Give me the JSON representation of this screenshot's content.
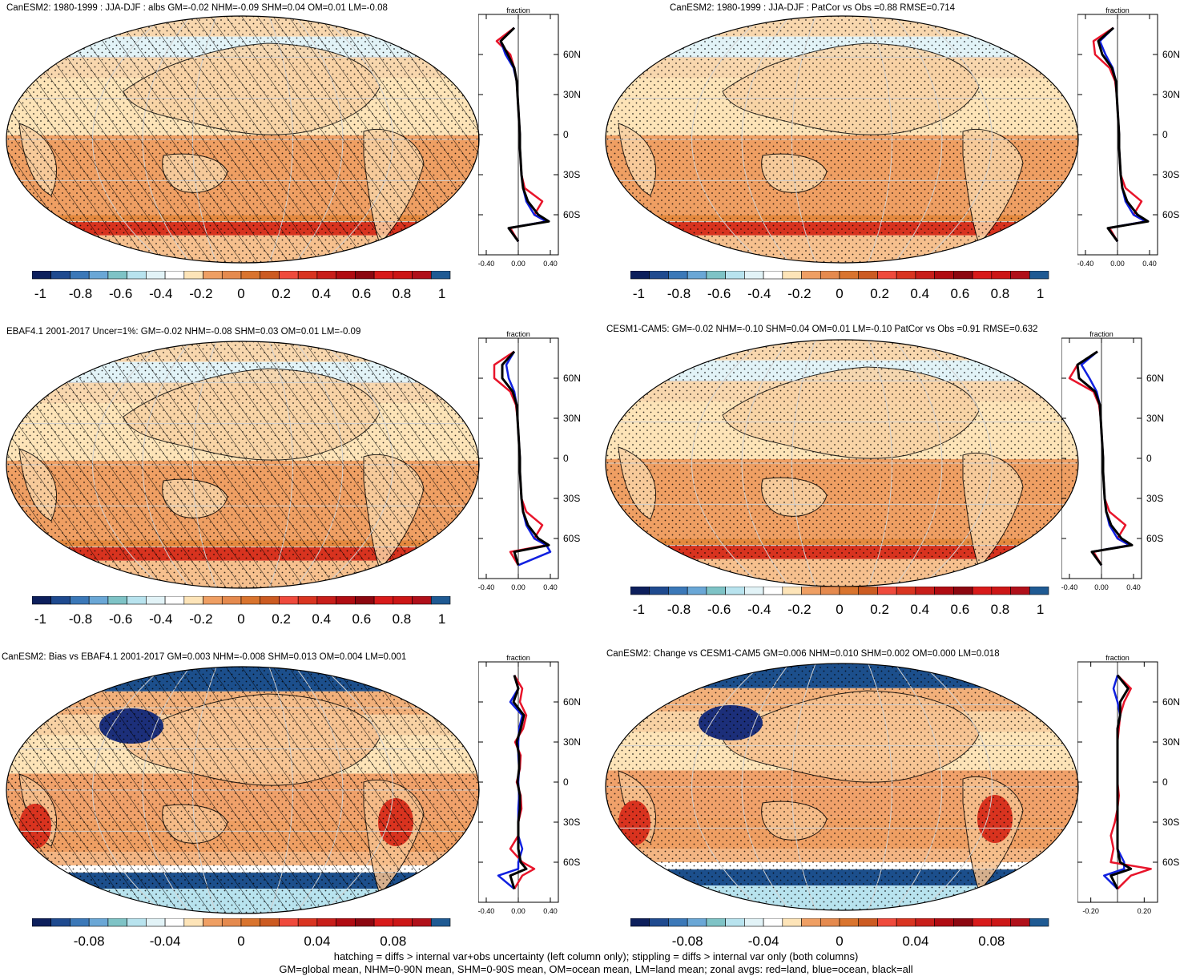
{
  "colors": {
    "palette": [
      "#0d1f5c",
      "#1f4a8f",
      "#3b78b8",
      "#6aa7d6",
      "#7ec3c6",
      "#b8e3ee",
      "#e2f3f7",
      "#ffffff",
      "#fde4b8",
      "#ef9f63",
      "#e58a4e",
      "#d9742e",
      "#cc5b22",
      "#ef4a3c",
      "#d93420",
      "#c81e1a",
      "#b00c12",
      "#8c0710",
      "#d81a1a",
      "#cc1616",
      "#b0101a",
      "#1f5a93"
    ],
    "land": "#e8142a",
    "ocean": "#1020e0",
    "all": "#000000"
  },
  "panels": [
    {
      "id": "p1",
      "title": "CanESM2: 1980-1999 : JJA-DJF : albs GM=-0.02 NHM=-0.09 SHM=0.04 OM=0.01 LM=-0.08",
      "hatched": true,
      "lat_labels": [
        "60N",
        "30N",
        "0",
        "30S",
        "60S"
      ],
      "zonal_axis_label": "fraction",
      "zonal_ticks": [
        "-0.40",
        "0.00",
        "0.40"
      ],
      "cbar_labels": [
        "-1",
        "-0.8",
        "-0.6",
        "-0.4",
        "-0.2",
        "0",
        "0.2",
        "0.4",
        "0.6",
        "0.8",
        "1"
      ]
    },
    {
      "id": "p2",
      "title": "CanESM2: 1980-1999 : JJA-DJF : PatCor vs Obs =0.88 RMSE=0.714",
      "hatched": false,
      "lat_labels": [
        "60N",
        "30N",
        "0",
        "30S",
        "60S"
      ],
      "zonal_axis_label": "fraction",
      "zonal_ticks": [
        "-0.40",
        "0.00",
        "0.40"
      ],
      "cbar_labels": [
        "-1",
        "-0.8",
        "-0.6",
        "-0.4",
        "-0.2",
        "0",
        "0.2",
        "0.4",
        "0.6",
        "0.8",
        "1"
      ]
    },
    {
      "id": "p3",
      "title": "EBAF4.1 2001-2017 Uncer=1%: GM=-0.02 NHM=-0.08 SHM=0.03 OM=0.01 LM=-0.09",
      "hatched": true,
      "lat_labels": [
        "60N",
        "30N",
        "0",
        "30S",
        "60S"
      ],
      "zonal_axis_label": "fraction",
      "zonal_ticks": [
        "-0.40",
        "0.00",
        "0.40"
      ],
      "cbar_labels": [
        "-1",
        "-0.8",
        "-0.6",
        "-0.4",
        "-0.2",
        "0",
        "0.2",
        "0.4",
        "0.6",
        "0.8",
        "1"
      ]
    },
    {
      "id": "p4",
      "title": "CESM1-CAM5: GM=-0.02 NHM=-0.10 SHM=0.04 OM=0.01 LM=-0.10 PatCor vs Obs =0.91 RMSE=0.632",
      "hatched": false,
      "lat_labels": [
        "60N",
        "30N",
        "0",
        "30S",
        "60S"
      ],
      "zonal_axis_label": "fraction",
      "zonal_ticks": [
        "-0.40",
        "0.00",
        "0.40"
      ],
      "cbar_labels": [
        "-1",
        "-0.8",
        "-0.6",
        "-0.4",
        "-0.2",
        "0",
        "0.2",
        "0.4",
        "0.6",
        "0.8",
        "1"
      ]
    },
    {
      "id": "p5",
      "title": "CanESM2: Bias vs EBAF4.1 2001-2017 GM=0.003 NHM=-0.008 SHM=0.013 OM=0.004 LM=0.001",
      "hatched": true,
      "lat_labels": [
        "60N",
        "30N",
        "0",
        "30S",
        "60S"
      ],
      "zonal_axis_label": "fraction",
      "zonal_ticks": [
        "-0.40",
        "0.00",
        "0.40"
      ],
      "cbar_labels": [
        "-0.08",
        "-0.04",
        "0",
        "0.04",
        "0.08"
      ]
    },
    {
      "id": "p6",
      "title": "CanESM2: Change vs CESM1-CAM5 GM=0.006 NHM=0.010 SHM=0.002 OM=0.000 LM=0.018",
      "hatched": false,
      "lat_labels": [
        "60N",
        "30N",
        "0",
        "30S",
        "60S"
      ],
      "zonal_axis_label": "fraction",
      "zonal_ticks": [
        "-0.20",
        "0.20"
      ],
      "cbar_labels": [
        "-0.08",
        "-0.04",
        "0",
        "0.04",
        "0.08"
      ]
    }
  ],
  "footer": {
    "line1": "hatching = diffs > internal var+obs uncertainty (left column only); stippling = diffs > internal var only (both columns)",
    "line2": "GM=global mean, NHM=0-90N mean, SHM=0-90S mean, OM=ocean mean, LM=land mean; zonal avgs: red=land, blue=ocean, black=all"
  },
  "chart_data": [
    {
      "type": "line",
      "title": "CanESM2: 1980-1999 : JJA-DJF : albs GM=-0.02 NHM=-0.09 SHM=0.04 OM=0.01 LM=-0.08",
      "xlabel": "fraction",
      "xlim": [
        -0.5,
        0.5
      ],
      "ylim": [
        -90,
        90
      ],
      "lat": [
        80,
        70,
        60,
        50,
        40,
        30,
        20,
        10,
        0,
        -10,
        -20,
        -30,
        -40,
        -50,
        -60,
        -65,
        -70,
        -80
      ],
      "series": [
        {
          "name": "land",
          "color": "#e8142a",
          "values": [
            -0.05,
            -0.27,
            -0.1,
            -0.05,
            -0.02,
            -0.01,
            0,
            0.01,
            0.02,
            0.02,
            0.03,
            0.04,
            0.08,
            0.3,
            0.2,
            0.35,
            -0.1,
            0
          ]
        },
        {
          "name": "ocean",
          "color": "#1020e0",
          "values": [
            -0.05,
            -0.22,
            -0.16,
            -0.06,
            -0.02,
            -0.01,
            0,
            0.01,
            0.02,
            0.02,
            0.03,
            0.04,
            0.06,
            0.1,
            0.2,
            0.35,
            -0.12,
            0
          ]
        },
        {
          "name": "all",
          "color": "#000000",
          "values": [
            -0.05,
            -0.22,
            -0.13,
            -0.05,
            -0.02,
            -0.01,
            0,
            0.01,
            0.02,
            0.02,
            0.03,
            0.04,
            0.06,
            0.12,
            0.25,
            0.38,
            -0.12,
            0
          ]
        }
      ]
    },
    {
      "type": "line",
      "title": "CanESM2: 1980-1999 : JJA-DJF : PatCor vs Obs =0.88 RMSE=0.714",
      "xlabel": "fraction",
      "xlim": [
        -0.5,
        0.5
      ],
      "ylim": [
        -90,
        90
      ],
      "lat": [
        80,
        70,
        60,
        50,
        40,
        30,
        20,
        10,
        0,
        -10,
        -20,
        -30,
        -40,
        -50,
        -60,
        -65,
        -70,
        -80
      ],
      "series": [
        {
          "name": "land",
          "color": "#e8142a",
          "values": [
            -0.05,
            -0.3,
            -0.28,
            -0.1,
            -0.03,
            -0.01,
            0,
            0.01,
            0.02,
            0.02,
            0.03,
            0.04,
            0.1,
            0.3,
            0.2,
            0.35,
            -0.1,
            0
          ]
        },
        {
          "name": "ocean",
          "color": "#1020e0",
          "values": [
            -0.05,
            -0.22,
            -0.15,
            -0.06,
            -0.02,
            -0.01,
            0,
            0.01,
            0.02,
            0.02,
            0.03,
            0.04,
            0.06,
            0.1,
            0.2,
            0.35,
            -0.12,
            0
          ]
        },
        {
          "name": "all",
          "color": "#000000",
          "values": [
            -0.05,
            -0.24,
            -0.19,
            -0.07,
            -0.02,
            -0.01,
            0,
            0.01,
            0.02,
            0.02,
            0.03,
            0.04,
            0.06,
            0.12,
            0.25,
            0.38,
            -0.12,
            0
          ]
        }
      ]
    },
    {
      "type": "line",
      "title": "EBAF4.1 2001-2017 Uncer=1%: GM=-0.02 NHM=-0.08 SHM=0.03 OM=0.01 LM=-0.09",
      "xlabel": "fraction",
      "xlim": [
        -0.5,
        0.5
      ],
      "ylim": [
        -90,
        90
      ],
      "lat": [
        80,
        70,
        60,
        50,
        40,
        30,
        20,
        10,
        0,
        -10,
        -20,
        -30,
        -40,
        -50,
        -60,
        -65,
        -70,
        -80
      ],
      "series": [
        {
          "name": "land",
          "color": "#e8142a",
          "values": [
            -0.05,
            -0.3,
            -0.3,
            -0.1,
            -0.03,
            -0.01,
            0,
            0.01,
            0.02,
            0.02,
            0.03,
            0.04,
            0.1,
            0.3,
            0.2,
            0.35,
            -0.1,
            0
          ]
        },
        {
          "name": "ocean",
          "color": "#1020e0",
          "values": [
            -0.05,
            -0.15,
            -0.12,
            -0.05,
            -0.02,
            -0.01,
            0,
            0.01,
            0.02,
            0.02,
            0.03,
            0.04,
            0.06,
            0.1,
            0.2,
            0.35,
            0.4,
            0
          ]
        },
        {
          "name": "all",
          "color": "#000000",
          "values": [
            -0.05,
            -0.2,
            -0.2,
            -0.07,
            -0.02,
            -0.01,
            0,
            0.01,
            0.02,
            0.02,
            0.03,
            0.04,
            0.06,
            0.12,
            0.25,
            0.38,
            -0.05,
            0
          ]
        }
      ]
    },
    {
      "type": "line",
      "title": "CESM1-CAM5: GM=-0.02 NHM=-0.10 SHM=0.04 OM=0.01 LM=-0.10 PatCor vs Obs =0.91 RMSE=0.632",
      "xlabel": "fraction",
      "xlim": [
        -0.5,
        0.5
      ],
      "ylim": [
        -90,
        90
      ],
      "lat": [
        80,
        70,
        60,
        50,
        40,
        30,
        20,
        10,
        0,
        -10,
        -20,
        -30,
        -40,
        -50,
        -60,
        -65,
        -70,
        -80
      ],
      "series": [
        {
          "name": "land",
          "color": "#e8142a",
          "values": [
            -0.05,
            -0.3,
            -0.4,
            -0.1,
            -0.03,
            -0.01,
            0,
            0.01,
            0.02,
            0.02,
            0.03,
            0.04,
            0.1,
            0.3,
            0.2,
            0.35,
            -0.1,
            0
          ]
        },
        {
          "name": "ocean",
          "color": "#1020e0",
          "values": [
            -0.05,
            -0.25,
            -0.15,
            -0.06,
            -0.02,
            -0.01,
            0,
            0.01,
            0.02,
            0.02,
            0.03,
            0.04,
            0.06,
            0.1,
            0.2,
            0.35,
            -0.12,
            0
          ]
        },
        {
          "name": "all",
          "color": "#000000",
          "values": [
            -0.05,
            -0.3,
            -0.28,
            -0.08,
            -0.02,
            -0.01,
            0,
            0.01,
            0.02,
            0.02,
            0.03,
            0.04,
            0.06,
            0.12,
            0.25,
            0.38,
            -0.12,
            0
          ]
        }
      ]
    },
    {
      "type": "line",
      "title": "CanESM2: Bias vs EBAF4.1 2001-2017 GM=0.003 NHM=-0.008 SHM=0.013 OM=0.004 LM=0.001",
      "xlabel": "fraction",
      "xlim": [
        -0.5,
        0.5
      ],
      "ylim": [
        -90,
        90
      ],
      "lat": [
        80,
        70,
        60,
        50,
        40,
        30,
        20,
        10,
        0,
        -10,
        -20,
        -30,
        -40,
        -50,
        -60,
        -65,
        -70,
        -80
      ],
      "series": [
        {
          "name": "land",
          "color": "#e8142a",
          "values": [
            -0.05,
            0.05,
            0.02,
            0.1,
            0.06,
            -0.04,
            0.03,
            0.02,
            -0.02,
            0.03,
            0.04,
            0.0,
            0.0,
            -0.1,
            0.05,
            0.2,
            0.05,
            -0.05
          ]
        },
        {
          "name": "ocean",
          "color": "#1020e0",
          "values": [
            -0.05,
            0.0,
            -0.1,
            0.05,
            0.01,
            0.0,
            0.0,
            0.01,
            0.0,
            0.01,
            0.0,
            0.0,
            0.0,
            0.05,
            0.0,
            0.0,
            -0.25,
            -0.05
          ]
        },
        {
          "name": "all",
          "color": "#000000",
          "values": [
            -0.05,
            0.0,
            -0.06,
            0.07,
            0.03,
            -0.02,
            0.01,
            0.01,
            -0.01,
            0.02,
            0.02,
            0.0,
            0.0,
            0.0,
            0.03,
            0.1,
            -0.1,
            -0.05
          ]
        }
      ]
    },
    {
      "type": "line",
      "title": "CanESM2: Change vs CESM1-CAM5 GM=0.006 NHM=0.010 SHM=0.002 OM=0.000 LM=0.018",
      "xlabel": "fraction",
      "xlim": [
        -0.3,
        0.3
      ],
      "ylim": [
        -90,
        90
      ],
      "lat": [
        80,
        70,
        60,
        50,
        40,
        30,
        20,
        10,
        0,
        -10,
        -20,
        -30,
        -40,
        -50,
        -60,
        -65,
        -70,
        -80
      ],
      "series": [
        {
          "name": "land",
          "color": "#e8142a",
          "values": [
            0.0,
            0.1,
            0.05,
            0.02,
            0.01,
            0.0,
            0.0,
            0.0,
            0.0,
            0.01,
            0.0,
            -0.02,
            -0.05,
            -0.03,
            -0.05,
            0.25,
            0.1,
            0.0
          ]
        },
        {
          "name": "ocean",
          "color": "#1020e0",
          "values": [
            0.0,
            -0.03,
            0.0,
            0.02,
            0.0,
            0.0,
            0.0,
            0.0,
            0.0,
            0.0,
            0.0,
            0.0,
            0.0,
            0.0,
            0.05,
            0.05,
            -0.1,
            0.0
          ]
        },
        {
          "name": "all",
          "color": "#000000",
          "values": [
            0.0,
            0.08,
            0.02,
            0.02,
            0.0,
            0.0,
            0.0,
            0.0,
            0.0,
            0.0,
            0.0,
            0.0,
            0.0,
            0.0,
            0.02,
            0.1,
            -0.05,
            0.0
          ]
        }
      ]
    }
  ]
}
